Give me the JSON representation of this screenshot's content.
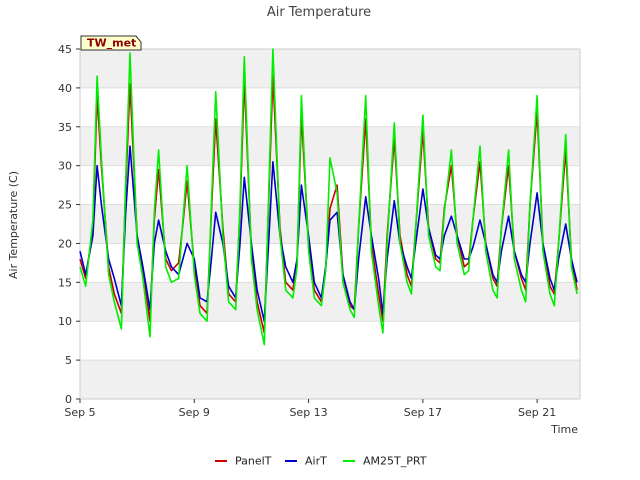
{
  "chart_data": {
    "type": "line",
    "title": "Air Temperature",
    "xlabel": "Time",
    "ylabel": "Air Temperature (C)",
    "badge": "TW_met",
    "ylim": [
      0,
      45
    ],
    "yticks": [
      0,
      5,
      10,
      15,
      20,
      25,
      30,
      35,
      40,
      45
    ],
    "xlim": [
      "2023-09-05",
      "2023-09-22 12:00"
    ],
    "xticks": [
      {
        "label": "Sep 5",
        "day": 5
      },
      {
        "label": "Sep 9",
        "day": 9
      },
      {
        "label": "Sep 13",
        "day": 13
      },
      {
        "label": "Sep 17",
        "day": 17
      },
      {
        "label": "Sep 21",
        "day": 21
      }
    ],
    "grid": "alternating horizontal bands",
    "legend_position": "bottom-center",
    "series": [
      {
        "name": "PanelT",
        "color": "#cc0000",
        "x": [
          5.0,
          5.2,
          5.45,
          5.6,
          5.75,
          6.0,
          6.2,
          6.45,
          6.6,
          6.75,
          7.0,
          7.2,
          7.45,
          7.6,
          7.75,
          8.0,
          8.2,
          8.45,
          8.6,
          8.75,
          9.0,
          9.2,
          9.45,
          9.6,
          9.75,
          10.0,
          10.2,
          10.45,
          10.6,
          10.75,
          11.0,
          11.2,
          11.45,
          11.6,
          11.75,
          12.0,
          12.2,
          12.45,
          12.6,
          12.75,
          13.0,
          13.2,
          13.45,
          13.6,
          13.75,
          14.0,
          14.2,
          14.45,
          14.6,
          14.75,
          15.0,
          15.2,
          15.45,
          15.6,
          15.75,
          16.0,
          16.2,
          16.45,
          16.6,
          16.75,
          17.0,
          17.2,
          17.45,
          17.6,
          17.75,
          18.0,
          18.2,
          18.45,
          18.6,
          18.75,
          19.0,
          19.2,
          19.45,
          19.6,
          19.75,
          20.0,
          20.2,
          20.45,
          20.6,
          20.75,
          21.0,
          21.2,
          21.45,
          21.6,
          21.75,
          22.0,
          22.2,
          22.4
        ],
        "y": [
          18,
          15.5,
          22,
          39,
          30,
          17,
          13.5,
          11,
          27,
          40.5,
          21,
          16.5,
          10,
          23,
          29.5,
          18,
          16.5,
          17.5,
          22.5,
          28,
          17,
          12,
          11,
          24,
          36,
          22,
          13.5,
          12.5,
          24,
          41,
          19,
          12.5,
          8.5,
          25,
          41.5,
          22,
          15,
          14,
          18,
          36.5,
          20,
          14,
          12.5,
          17,
          24.5,
          27.5,
          16,
          12,
          11.5,
          22,
          36,
          20,
          13.5,
          10,
          21,
          33.5,
          21,
          16,
          14.5,
          22,
          34.5,
          22,
          18,
          17.5,
          24.5,
          30,
          21,
          17,
          17.5,
          23,
          30.5,
          20,
          15.5,
          14.5,
          22,
          30,
          19,
          15.5,
          14,
          25,
          37,
          20,
          14.5,
          13.5,
          20,
          32,
          18,
          14
        ]
      },
      {
        "name": "AirT",
        "color": "#0000cc",
        "x": [
          5.0,
          5.2,
          5.45,
          5.6,
          5.75,
          6.0,
          6.2,
          6.45,
          6.6,
          6.75,
          7.0,
          7.2,
          7.45,
          7.6,
          7.75,
          8.0,
          8.2,
          8.45,
          8.6,
          8.75,
          9.0,
          9.2,
          9.45,
          9.6,
          9.75,
          10.0,
          10.2,
          10.45,
          10.6,
          10.75,
          11.0,
          11.2,
          11.45,
          11.6,
          11.75,
          12.0,
          12.2,
          12.45,
          12.6,
          12.75,
          13.0,
          13.2,
          13.45,
          13.6,
          13.75,
          14.0,
          14.2,
          14.45,
          14.6,
          14.75,
          15.0,
          15.2,
          15.45,
          15.6,
          15.75,
          16.0,
          16.2,
          16.45,
          16.6,
          16.75,
          17.0,
          17.2,
          17.45,
          17.6,
          17.75,
          18.0,
          18.2,
          18.45,
          18.6,
          18.75,
          19.0,
          19.2,
          19.45,
          19.6,
          19.75,
          20.0,
          20.2,
          20.45,
          20.6,
          20.75,
          21.0,
          21.2,
          21.45,
          21.6,
          21.75,
          22.0,
          22.2,
          22.4
        ],
        "y": [
          19,
          16,
          21,
          30,
          25,
          18,
          15.5,
          12,
          24,
          32.5,
          21,
          17,
          11.5,
          20,
          23,
          19,
          17,
          16,
          18,
          20,
          18,
          13,
          12.5,
          18,
          24,
          20,
          14.5,
          13,
          20,
          28.5,
          20,
          14,
          10,
          20,
          30.5,
          21,
          17,
          15,
          18,
          27.5,
          21,
          15,
          13,
          17,
          23,
          24,
          16,
          12.5,
          11.5,
          18,
          26,
          21,
          15.5,
          11,
          18,
          25.5,
          20,
          17,
          15.5,
          20,
          27,
          22,
          18.5,
          18,
          21,
          23.5,
          21,
          18,
          18,
          19.5,
          23,
          20,
          16,
          15,
          19,
          23.5,
          19,
          16,
          15,
          20,
          26.5,
          20,
          15.5,
          14,
          18,
          22.5,
          18,
          15
        ]
      },
      {
        "name": "AM25T_PRT",
        "color": "#00ee00",
        "x": [
          5.0,
          5.2,
          5.45,
          5.6,
          5.75,
          6.0,
          6.2,
          6.45,
          6.6,
          6.75,
          7.0,
          7.2,
          7.45,
          7.6,
          7.75,
          8.0,
          8.2,
          8.45,
          8.6,
          8.75,
          9.0,
          9.2,
          9.45,
          9.6,
          9.75,
          10.0,
          10.2,
          10.45,
          10.6,
          10.75,
          11.0,
          11.2,
          11.45,
          11.6,
          11.75,
          12.0,
          12.2,
          12.45,
          12.6,
          12.75,
          13.0,
          13.2,
          13.45,
          13.6,
          13.75,
          14.0,
          14.2,
          14.45,
          14.6,
          14.75,
          15.0,
          15.2,
          15.45,
          15.6,
          15.75,
          16.0,
          16.2,
          16.45,
          16.6,
          16.75,
          17.0,
          17.2,
          17.45,
          17.6,
          17.75,
          18.0,
          18.2,
          18.45,
          18.6,
          18.75,
          19.0,
          19.2,
          19.45,
          19.6,
          19.75,
          20.0,
          20.2,
          20.45,
          20.6,
          20.75,
          21.0,
          21.2,
          21.45,
          21.6,
          21.75,
          22.0,
          22.2,
          22.4
        ],
        "y": [
          17,
          14.5,
          23,
          41.5,
          31,
          16,
          12.5,
          9,
          28,
          44.5,
          20,
          15.5,
          8,
          24,
          32,
          17,
          15,
          15.5,
          23,
          30,
          16,
          11,
          10,
          25,
          39.5,
          21,
          12.5,
          11.5,
          25,
          44,
          18,
          11.5,
          7,
          26,
          45,
          21,
          14,
          13,
          17,
          39,
          19,
          13,
          12,
          16.5,
          31,
          26.5,
          15,
          11.5,
          10.5,
          22,
          39,
          19,
          12,
          8.5,
          20,
          35.5,
          20,
          15,
          13.5,
          22,
          36.5,
          21,
          17,
          16.5,
          24,
          32,
          20,
          16,
          16.5,
          23,
          32.5,
          19,
          14,
          13,
          22,
          32,
          18,
          14,
          12.5,
          25,
          39,
          19,
          13.5,
          12,
          20,
          34,
          17,
          13.5
        ]
      }
    ]
  }
}
